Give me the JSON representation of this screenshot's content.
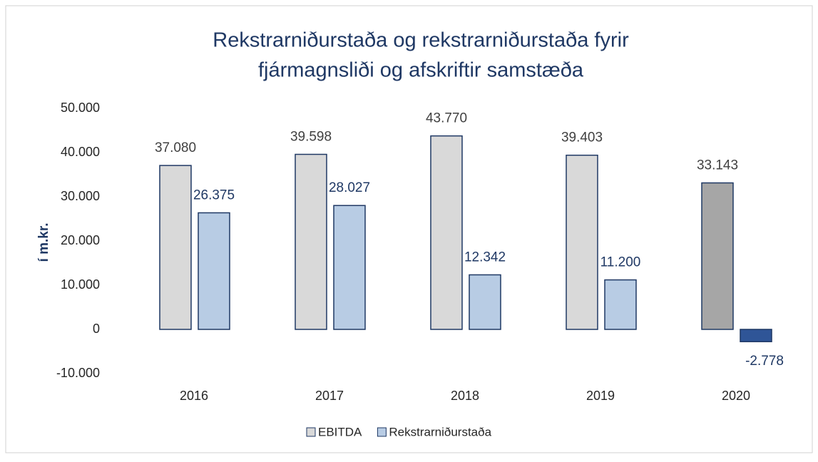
{
  "chart_data": {
    "type": "bar",
    "title": [
      "Rekstrarniðurstaða og rekstrarniðurstaða fyrir",
      "fjármagnsliði og afskriftir samstæða"
    ],
    "y_label": "í m.kr.",
    "categories": [
      "2016",
      "2017",
      "2018",
      "2019",
      "2020"
    ],
    "series": [
      {
        "name": "EBITDA",
        "color": "#d9d9d9",
        "colors": [
          "#d9d9d9",
          "#d9d9d9",
          "#d9d9d9",
          "#d9d9d9",
          "#a6a6a6"
        ],
        "values": [
          37080,
          39598,
          43770,
          39403,
          33143
        ],
        "value_labels": [
          "37.080",
          "39.598",
          "43.770",
          "39.403",
          "33.143"
        ]
      },
      {
        "name": "Rekstrarniðurstaða",
        "color": "#b8cce4",
        "colors": [
          "#b8cce4",
          "#b8cce4",
          "#b8cce4",
          "#b8cce4",
          "#2f5597"
        ],
        "values": [
          26375,
          28027,
          12342,
          11200,
          -2778
        ],
        "value_labels": [
          "26.375",
          "28.027",
          "12.342",
          "11.200",
          "-2.778"
        ]
      }
    ],
    "ylim": [
      -10000,
      50000
    ],
    "yticks": [
      {
        "value": -10000,
        "label": "-10.000"
      },
      0,
      {
        "value": 10000,
        "label": "10.000"
      },
      {
        "value": 20000,
        "label": "20.000"
      },
      {
        "value": 30000,
        "label": "30.000"
      },
      {
        "value": 40000,
        "label": "40.000"
      },
      {
        "value": 50000,
        "label": "50.000"
      }
    ],
    "grid": false,
    "legend": "bottom"
  }
}
